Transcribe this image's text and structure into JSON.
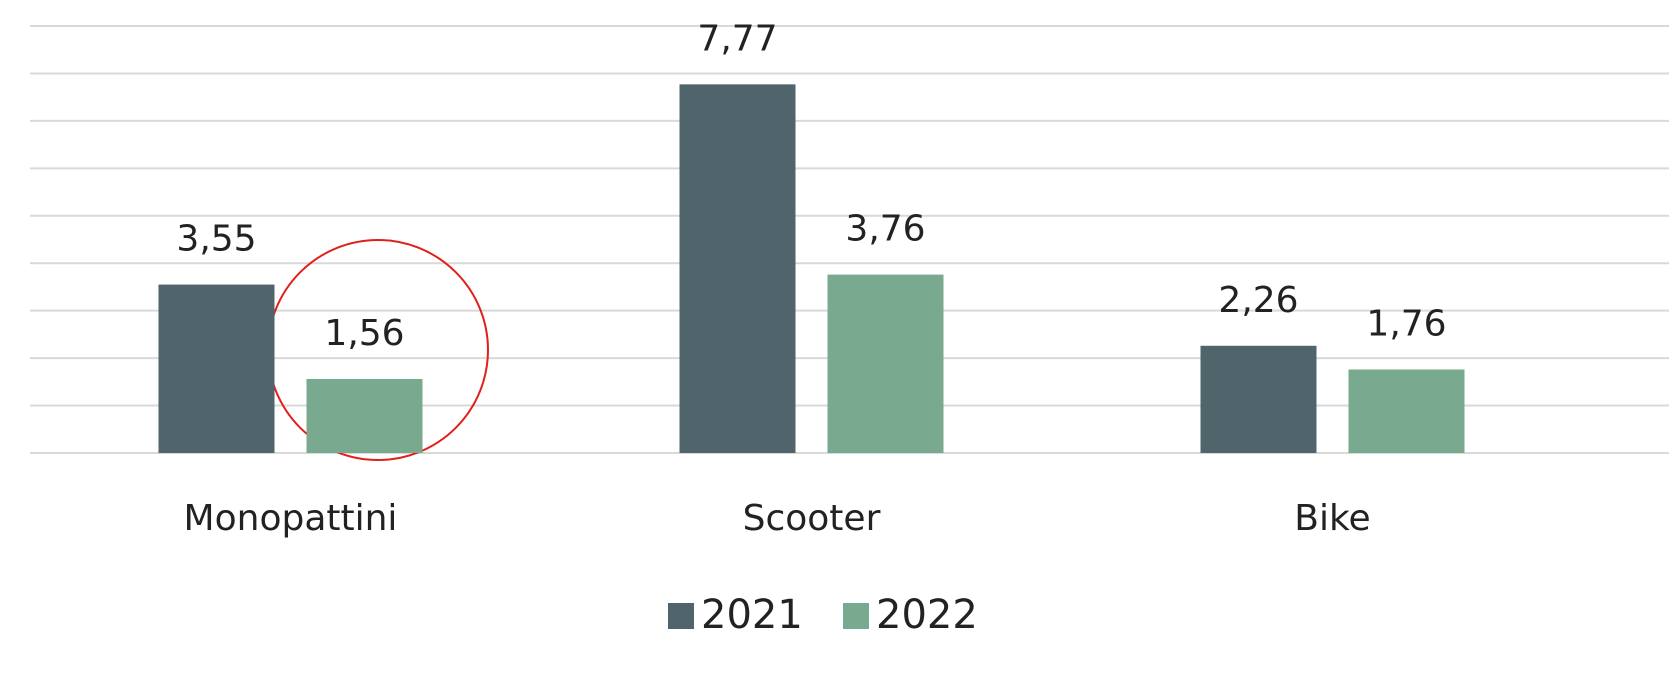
{
  "chart_data": {
    "type": "bar",
    "categories": [
      "Monopattini",
      "Scooter",
      "Bike"
    ],
    "series": [
      {
        "name": "2021",
        "color": "#4f646b",
        "values": [
          3.55,
          7.77,
          2.26
        ],
        "value_labels": [
          "3,55",
          "7,77",
          "2,26"
        ]
      },
      {
        "name": "2022",
        "color": "#79a98e",
        "values": [
          1.56,
          3.76,
          1.76
        ],
        "value_labels": [
          "1,56",
          "3,76",
          "1,76"
        ]
      }
    ],
    "ylim": [
      0,
      9
    ],
    "yticks": [
      0,
      1,
      2,
      3,
      4,
      5,
      6,
      7,
      8,
      9
    ],
    "grid": true,
    "legend": "bottom"
  }
}
